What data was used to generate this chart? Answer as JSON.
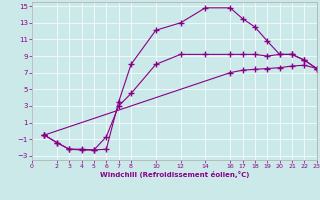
{
  "xlabel": "Windchill (Refroidissement éolien,°C)",
  "bg_color": "#cce9e9",
  "line_color": "#880088",
  "xlim": [
    0,
    23
  ],
  "ylim": [
    -3.5,
    15.5
  ],
  "xticks": [
    0,
    2,
    3,
    4,
    5,
    6,
    7,
    8,
    10,
    12,
    14,
    16,
    17,
    18,
    19,
    20,
    21,
    22,
    23
  ],
  "yticks": [
    -3,
    -1,
    1,
    3,
    5,
    7,
    9,
    11,
    13,
    15
  ],
  "line1_x": [
    1,
    2,
    3,
    4,
    5,
    6,
    7,
    8,
    10,
    12,
    14,
    16,
    17,
    18,
    19,
    20,
    21,
    22,
    23
  ],
  "line1_y": [
    -0.5,
    -1.4,
    -2.2,
    -2.2,
    -2.3,
    -2.2,
    3.5,
    8.0,
    12.1,
    13.0,
    14.8,
    14.8,
    13.5,
    12.5,
    10.8,
    9.2,
    9.2,
    8.5,
    7.5
  ],
  "line2_x": [
    1,
    2,
    3,
    4,
    5,
    6,
    7,
    8,
    10,
    12,
    14,
    16,
    17,
    18,
    19,
    20,
    21,
    22,
    23
  ],
  "line2_y": [
    -0.5,
    -1.4,
    -2.2,
    -2.3,
    -2.3,
    -0.7,
    3.0,
    4.5,
    8.0,
    9.2,
    9.2,
    9.2,
    9.2,
    9.2,
    9.0,
    9.2,
    9.2,
    8.5,
    7.5
  ],
  "line3_x": [
    1,
    16,
    17,
    18,
    19,
    20,
    21,
    22,
    23
  ],
  "line3_y": [
    -0.5,
    7.0,
    7.3,
    7.4,
    7.5,
    7.6,
    7.8,
    7.9,
    7.5
  ]
}
